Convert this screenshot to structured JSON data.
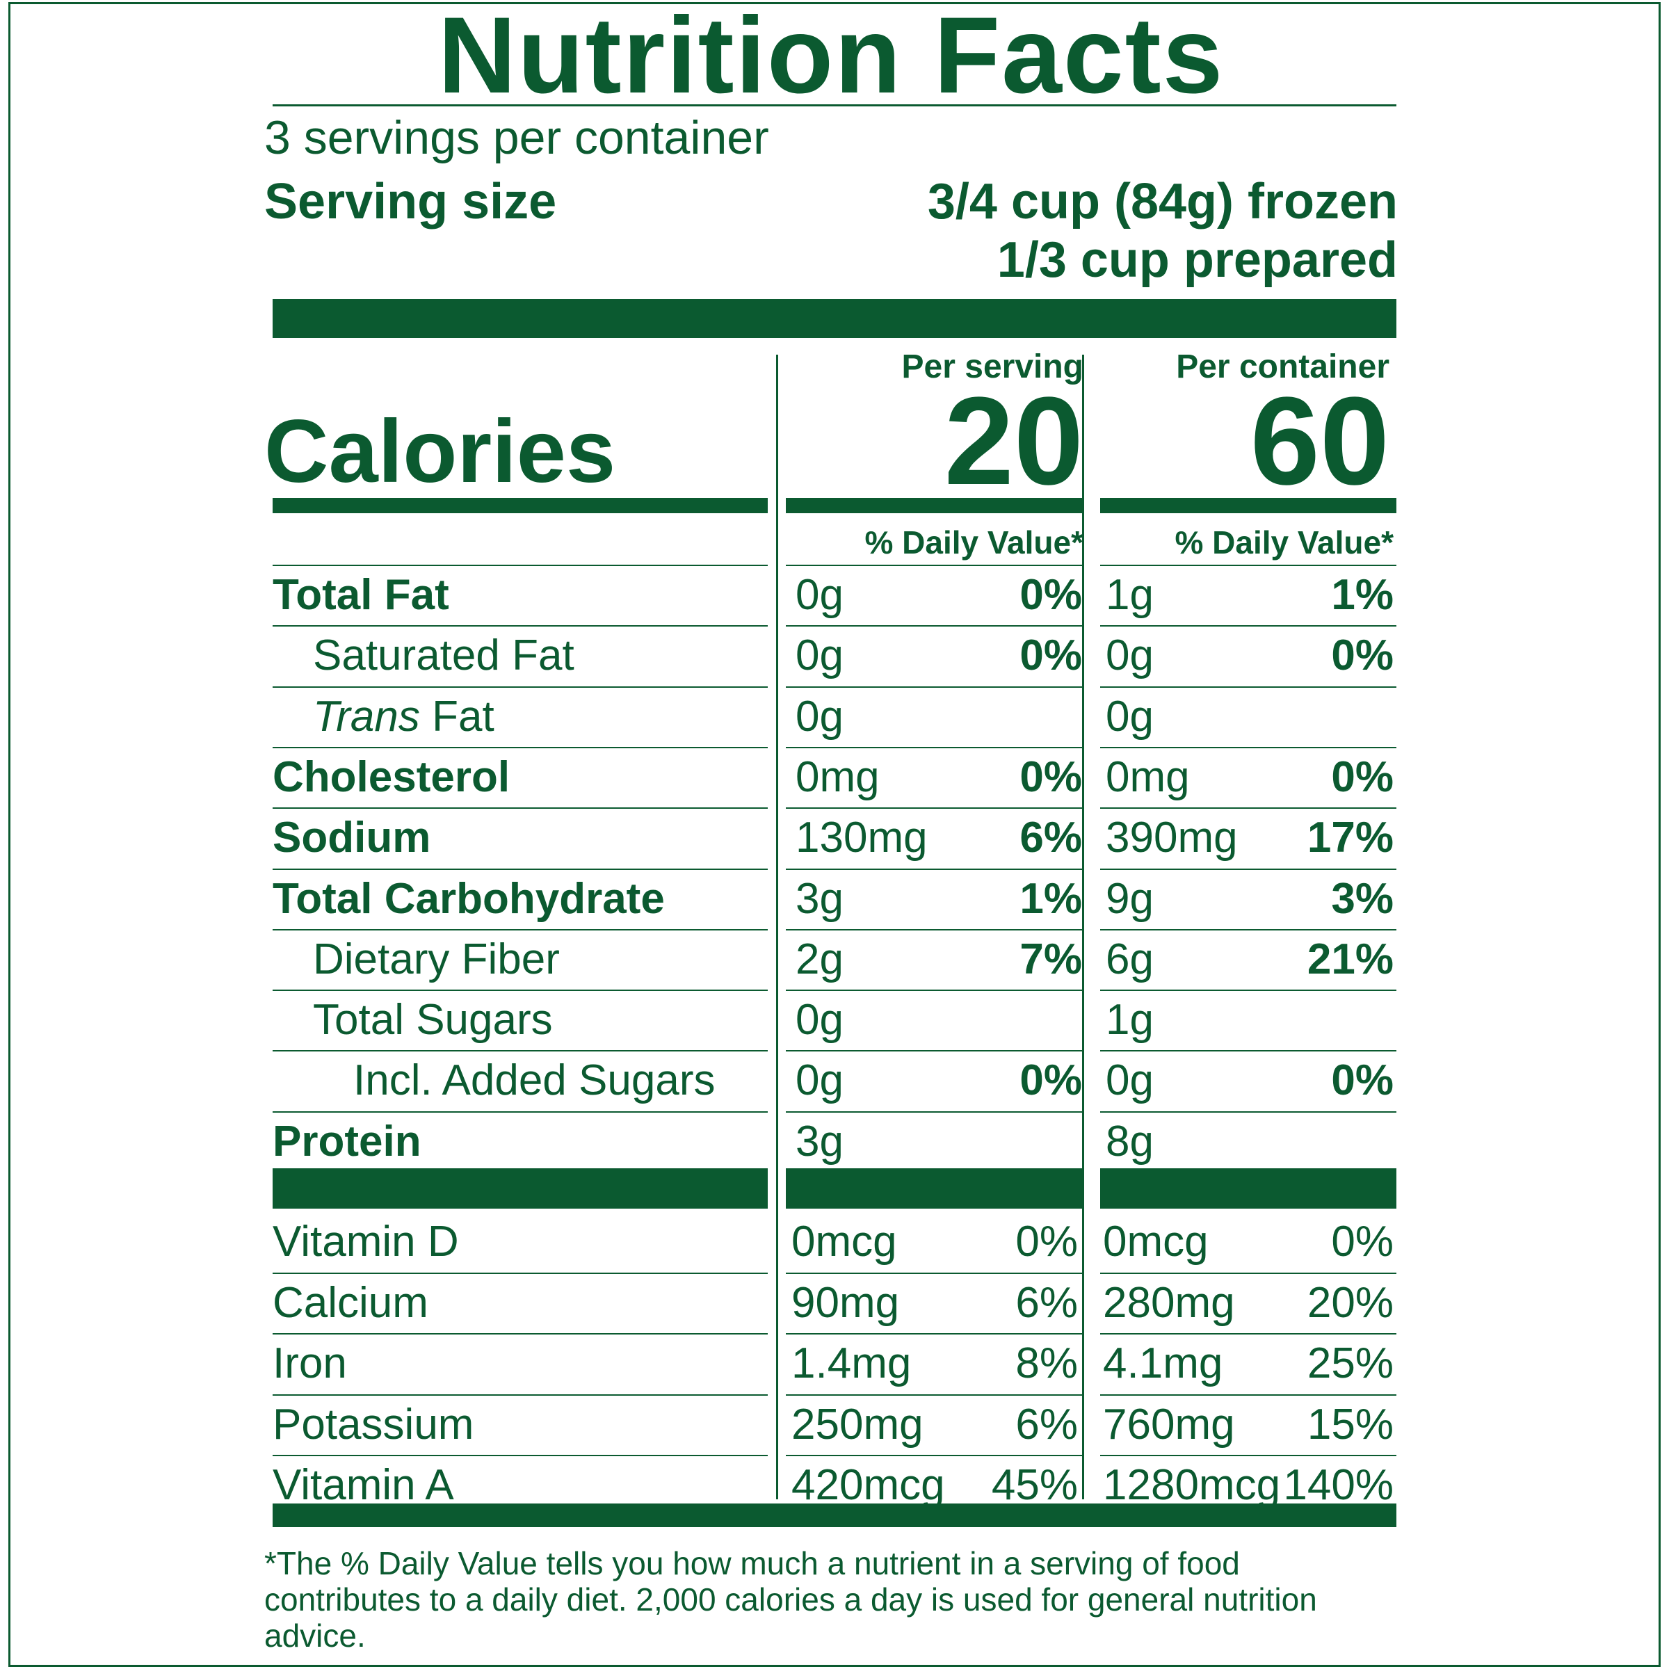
{
  "title": "Nutrition Facts",
  "servings_per_container": "3 servings per container",
  "serving_size": {
    "label": "Serving size",
    "value_frozen": "3/4 cup (84g) frozen",
    "value_prepared": "1/3 cup prepared"
  },
  "calories": {
    "label": "Calories",
    "per_serving_header": "Per serving",
    "per_container_header": "Per container",
    "per_serving": "20",
    "per_container": "60"
  },
  "daily_value_header": "% Daily Value*",
  "nutrients": [
    {
      "name": "Total Fat",
      "bold": true,
      "indent": 0,
      "serving_amount": "0g",
      "serving_dv": "0%",
      "container_amount": "1g",
      "container_dv": "1%"
    },
    {
      "name": "Saturated Fat",
      "bold": false,
      "indent": 1,
      "serving_amount": "0g",
      "serving_dv": "0%",
      "container_amount": "0g",
      "container_dv": "0%"
    },
    {
      "name_italic": "Trans",
      "name": " Fat",
      "bold": false,
      "indent": 1,
      "serving_amount": "0g",
      "serving_dv": "",
      "container_amount": "0g",
      "container_dv": ""
    },
    {
      "name": "Cholesterol",
      "bold": true,
      "indent": 0,
      "serving_amount": "0mg",
      "serving_dv": "0%",
      "container_amount": "0mg",
      "container_dv": "0%"
    },
    {
      "name": "Sodium",
      "bold": true,
      "indent": 0,
      "serving_amount": "130mg",
      "serving_dv": "6%",
      "container_amount": "390mg",
      "container_dv": "17%"
    },
    {
      "name": "Total Carbohydrate",
      "bold": true,
      "indent": 0,
      "serving_amount": "3g",
      "serving_dv": "1%",
      "container_amount": "9g",
      "container_dv": "3%"
    },
    {
      "name": "Dietary Fiber",
      "bold": false,
      "indent": 1,
      "serving_amount": "2g",
      "serving_dv": "7%",
      "container_amount": "6g",
      "container_dv": "21%"
    },
    {
      "name": "Total Sugars",
      "bold": false,
      "indent": 1,
      "serving_amount": "0g",
      "serving_dv": "",
      "container_amount": "1g",
      "container_dv": ""
    },
    {
      "name": "Incl. Added Sugars",
      "bold": false,
      "indent": 2,
      "serving_amount": "0g",
      "serving_dv": "0%",
      "container_amount": "0g",
      "container_dv": "0%"
    },
    {
      "name": "Protein",
      "bold": true,
      "indent": 0,
      "serving_amount": "3g",
      "serving_dv": "",
      "container_amount": "8g",
      "container_dv": ""
    }
  ],
  "vitamins": [
    {
      "name": "Vitamin D",
      "serving_amount": "0mcg",
      "serving_dv": "0%",
      "container_amount": "0mcg",
      "container_dv": "0%"
    },
    {
      "name": "Calcium",
      "serving_amount": "90mg",
      "serving_dv": "6%",
      "container_amount": "280mg",
      "container_dv": "20%"
    },
    {
      "name": "Iron",
      "serving_amount": "1.4mg",
      "serving_dv": "8%",
      "container_amount": "4.1mg",
      "container_dv": "25%"
    },
    {
      "name": "Potassium",
      "serving_amount": "250mg",
      "serving_dv": "6%",
      "container_amount": "760mg",
      "container_dv": "15%"
    },
    {
      "name": "Vitamin A",
      "serving_amount": "420mcg",
      "serving_dv": "45%",
      "container_amount": "1280mcg",
      "container_dv": "140%"
    }
  ],
  "footnote": "*The % Daily Value tells you how much a nutrient in a serving of food contributes to a daily diet. 2,000 calories a day is used for general nutrition advice.",
  "colors": {
    "ink": "#0b5a30",
    "background": "#ffffff"
  }
}
